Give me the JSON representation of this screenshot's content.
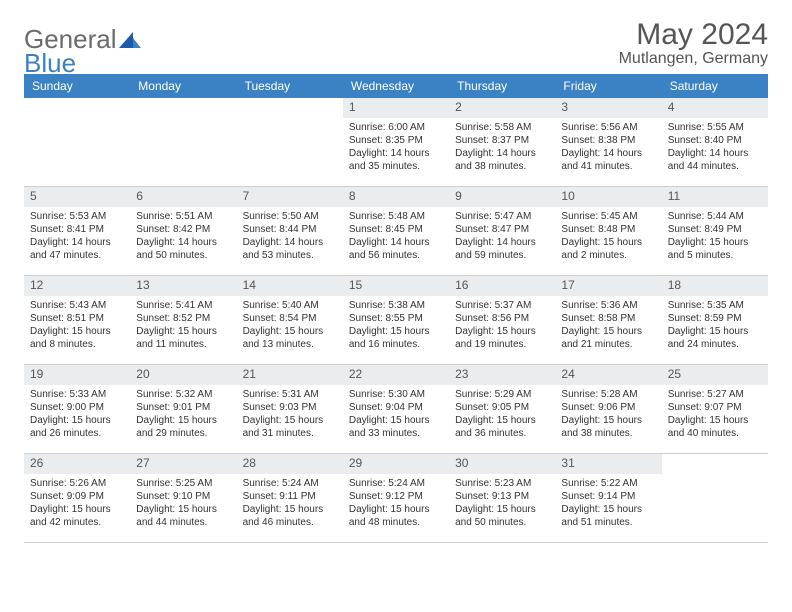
{
  "logo": {
    "text_a": "General",
    "text_b": "Blue"
  },
  "title": {
    "month": "May 2024",
    "location": "Mutlangen, Germany"
  },
  "colors": {
    "header_bg": "#3b82c4",
    "header_text": "#ffffff",
    "daynum_bg": "#e9edef",
    "text": "#333333",
    "logo_gray": "#6b6b6b",
    "logo_blue": "#3b82c4",
    "border": "#cfcfcf"
  },
  "typography": {
    "body_fontsize": 10,
    "header_fontsize": 12,
    "title_fontsize": 30,
    "location_fontsize": 16
  },
  "day_names": [
    "Sunday",
    "Monday",
    "Tuesday",
    "Wednesday",
    "Thursday",
    "Friday",
    "Saturday"
  ],
  "weeks": [
    [
      null,
      null,
      null,
      {
        "num": "1",
        "sunrise": "Sunrise: 6:00 AM",
        "sunset": "Sunset: 8:35 PM",
        "daylight": "Daylight: 14 hours and 35 minutes."
      },
      {
        "num": "2",
        "sunrise": "Sunrise: 5:58 AM",
        "sunset": "Sunset: 8:37 PM",
        "daylight": "Daylight: 14 hours and 38 minutes."
      },
      {
        "num": "3",
        "sunrise": "Sunrise: 5:56 AM",
        "sunset": "Sunset: 8:38 PM",
        "daylight": "Daylight: 14 hours and 41 minutes."
      },
      {
        "num": "4",
        "sunrise": "Sunrise: 5:55 AM",
        "sunset": "Sunset: 8:40 PM",
        "daylight": "Daylight: 14 hours and 44 minutes."
      }
    ],
    [
      {
        "num": "5",
        "sunrise": "Sunrise: 5:53 AM",
        "sunset": "Sunset: 8:41 PM",
        "daylight": "Daylight: 14 hours and 47 minutes."
      },
      {
        "num": "6",
        "sunrise": "Sunrise: 5:51 AM",
        "sunset": "Sunset: 8:42 PM",
        "daylight": "Daylight: 14 hours and 50 minutes."
      },
      {
        "num": "7",
        "sunrise": "Sunrise: 5:50 AM",
        "sunset": "Sunset: 8:44 PM",
        "daylight": "Daylight: 14 hours and 53 minutes."
      },
      {
        "num": "8",
        "sunrise": "Sunrise: 5:48 AM",
        "sunset": "Sunset: 8:45 PM",
        "daylight": "Daylight: 14 hours and 56 minutes."
      },
      {
        "num": "9",
        "sunrise": "Sunrise: 5:47 AM",
        "sunset": "Sunset: 8:47 PM",
        "daylight": "Daylight: 14 hours and 59 minutes."
      },
      {
        "num": "10",
        "sunrise": "Sunrise: 5:45 AM",
        "sunset": "Sunset: 8:48 PM",
        "daylight": "Daylight: 15 hours and 2 minutes."
      },
      {
        "num": "11",
        "sunrise": "Sunrise: 5:44 AM",
        "sunset": "Sunset: 8:49 PM",
        "daylight": "Daylight: 15 hours and 5 minutes."
      }
    ],
    [
      {
        "num": "12",
        "sunrise": "Sunrise: 5:43 AM",
        "sunset": "Sunset: 8:51 PM",
        "daylight": "Daylight: 15 hours and 8 minutes."
      },
      {
        "num": "13",
        "sunrise": "Sunrise: 5:41 AM",
        "sunset": "Sunset: 8:52 PM",
        "daylight": "Daylight: 15 hours and 11 minutes."
      },
      {
        "num": "14",
        "sunrise": "Sunrise: 5:40 AM",
        "sunset": "Sunset: 8:54 PM",
        "daylight": "Daylight: 15 hours and 13 minutes."
      },
      {
        "num": "15",
        "sunrise": "Sunrise: 5:38 AM",
        "sunset": "Sunset: 8:55 PM",
        "daylight": "Daylight: 15 hours and 16 minutes."
      },
      {
        "num": "16",
        "sunrise": "Sunrise: 5:37 AM",
        "sunset": "Sunset: 8:56 PM",
        "daylight": "Daylight: 15 hours and 19 minutes."
      },
      {
        "num": "17",
        "sunrise": "Sunrise: 5:36 AM",
        "sunset": "Sunset: 8:58 PM",
        "daylight": "Daylight: 15 hours and 21 minutes."
      },
      {
        "num": "18",
        "sunrise": "Sunrise: 5:35 AM",
        "sunset": "Sunset: 8:59 PM",
        "daylight": "Daylight: 15 hours and 24 minutes."
      }
    ],
    [
      {
        "num": "19",
        "sunrise": "Sunrise: 5:33 AM",
        "sunset": "Sunset: 9:00 PM",
        "daylight": "Daylight: 15 hours and 26 minutes."
      },
      {
        "num": "20",
        "sunrise": "Sunrise: 5:32 AM",
        "sunset": "Sunset: 9:01 PM",
        "daylight": "Daylight: 15 hours and 29 minutes."
      },
      {
        "num": "21",
        "sunrise": "Sunrise: 5:31 AM",
        "sunset": "Sunset: 9:03 PM",
        "daylight": "Daylight: 15 hours and 31 minutes."
      },
      {
        "num": "22",
        "sunrise": "Sunrise: 5:30 AM",
        "sunset": "Sunset: 9:04 PM",
        "daylight": "Daylight: 15 hours and 33 minutes."
      },
      {
        "num": "23",
        "sunrise": "Sunrise: 5:29 AM",
        "sunset": "Sunset: 9:05 PM",
        "daylight": "Daylight: 15 hours and 36 minutes."
      },
      {
        "num": "24",
        "sunrise": "Sunrise: 5:28 AM",
        "sunset": "Sunset: 9:06 PM",
        "daylight": "Daylight: 15 hours and 38 minutes."
      },
      {
        "num": "25",
        "sunrise": "Sunrise: 5:27 AM",
        "sunset": "Sunset: 9:07 PM",
        "daylight": "Daylight: 15 hours and 40 minutes."
      }
    ],
    [
      {
        "num": "26",
        "sunrise": "Sunrise: 5:26 AM",
        "sunset": "Sunset: 9:09 PM",
        "daylight": "Daylight: 15 hours and 42 minutes."
      },
      {
        "num": "27",
        "sunrise": "Sunrise: 5:25 AM",
        "sunset": "Sunset: 9:10 PM",
        "daylight": "Daylight: 15 hours and 44 minutes."
      },
      {
        "num": "28",
        "sunrise": "Sunrise: 5:24 AM",
        "sunset": "Sunset: 9:11 PM",
        "daylight": "Daylight: 15 hours and 46 minutes."
      },
      {
        "num": "29",
        "sunrise": "Sunrise: 5:24 AM",
        "sunset": "Sunset: 9:12 PM",
        "daylight": "Daylight: 15 hours and 48 minutes."
      },
      {
        "num": "30",
        "sunrise": "Sunrise: 5:23 AM",
        "sunset": "Sunset: 9:13 PM",
        "daylight": "Daylight: 15 hours and 50 minutes."
      },
      {
        "num": "31",
        "sunrise": "Sunrise: 5:22 AM",
        "sunset": "Sunset: 9:14 PM",
        "daylight": "Daylight: 15 hours and 51 minutes."
      },
      null
    ]
  ]
}
